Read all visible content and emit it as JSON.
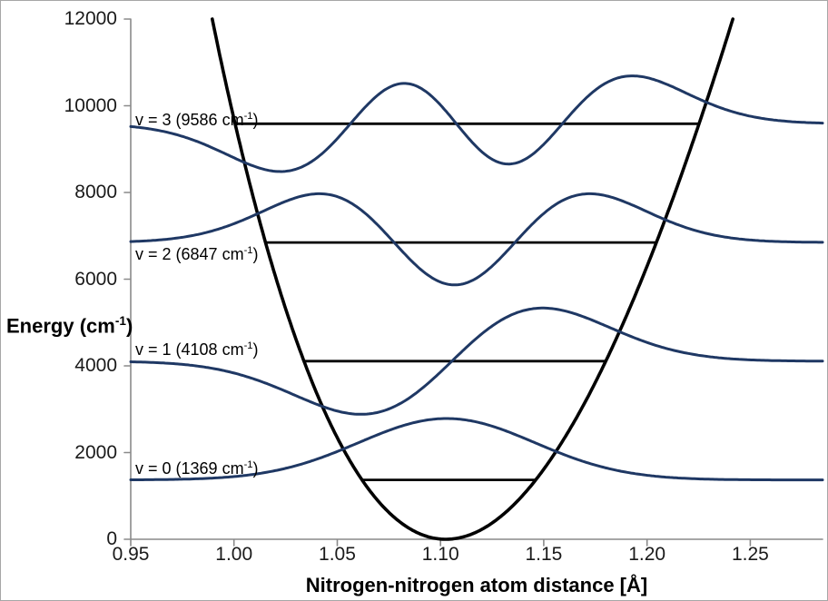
{
  "figure": {
    "background": "#FFFFFF",
    "border_color": "#A6A6A6"
  },
  "chart_data": {
    "type": "line",
    "title": "",
    "xlabel": "Nitrogen-nitrogen atom distance [Å]",
    "ylabel_prefix": "Energy (cm",
    "ylabel_sup": "-1",
    "ylabel_suffix": ")",
    "xlim": [
      0.95,
      1.285
    ],
    "ylim": [
      0,
      12000
    ],
    "grid": false,
    "legend": false,
    "x_ticks": [
      {
        "value": 0.95,
        "label": "0.95"
      },
      {
        "value": 1.0,
        "label": "1.00"
      },
      {
        "value": 1.05,
        "label": "1.05"
      },
      {
        "value": 1.1,
        "label": "1.10"
      },
      {
        "value": 1.15,
        "label": "1.15"
      },
      {
        "value": 1.2,
        "label": "1.20"
      },
      {
        "value": 1.25,
        "label": "1.25"
      }
    ],
    "y_ticks": [
      {
        "value": 0,
        "label": "0"
      },
      {
        "value": 2000,
        "label": "2000"
      },
      {
        "value": 4000,
        "label": "4000"
      },
      {
        "value": 6000,
        "label": "6000"
      },
      {
        "value": 8000,
        "label": "8000"
      },
      {
        "value": 10000,
        "label": "10000"
      },
      {
        "value": 12000,
        "label": "12000"
      }
    ],
    "potential_curve": {
      "model": "morse",
      "De_cm1": 290000,
      "a_perA": 1.6366,
      "re_A": 1.1026,
      "plot_max_E_cm1": 12000
    },
    "levels": [
      {
        "v": 0,
        "energy_cm1": 1369,
        "label_prefix": "v = 0 (1369 cm",
        "label_sup": "-1",
        "label_suffix": ")",
        "label_side": "above",
        "wavefunction": {
          "center_A": 1.103,
          "sigma_A": 0.0427,
          "amp_scale_cm1": 1416
        }
      },
      {
        "v": 1,
        "energy_cm1": 4108,
        "label_prefix": "v = 1 (4108 cm",
        "label_sup": "-1",
        "label_suffix": ")",
        "label_side": "above",
        "wavefunction": {
          "center_A": 1.1055,
          "sigma_A": 0.044,
          "amp_scale_cm1": 2020
        }
      },
      {
        "v": 2,
        "energy_cm1": 6847,
        "label_prefix": "v = 2 (6847 cm",
        "label_sup": "-1",
        "label_suffix": ")",
        "label_side": "below",
        "wavefunction": {
          "center_A": 1.1068,
          "sigma_A": 0.0414,
          "amp_scale_cm1": 980
        }
      },
      {
        "v": 3,
        "energy_cm1": 9586,
        "label_prefix": "v = 3 (9586 cm",
        "label_sup": "-1",
        "label_suffix": ")",
        "label_side": "overlap",
        "wavefunction": {
          "center_A": 1.1077,
          "sigma_A": 0.0419,
          "amp_scale_cm1": 814
        }
      }
    ],
    "colors": {
      "potential": "#000000",
      "level_line": "#000000",
      "wavefunction": "#1F3864",
      "axis_line": "#8A8A8A",
      "tick_text": "#1A1A1A",
      "title_text": "#000000"
    }
  }
}
